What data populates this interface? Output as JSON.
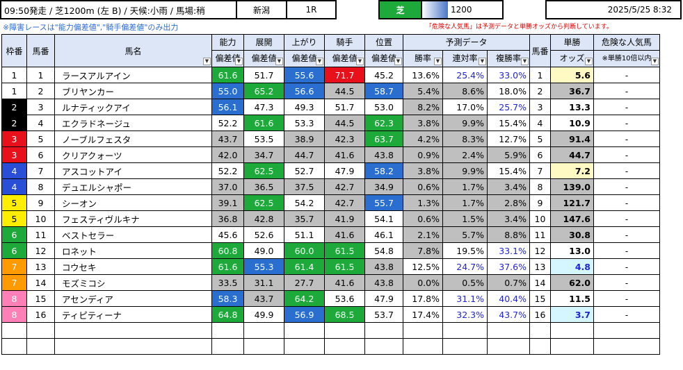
{
  "header": {
    "race_info": "09:50発走 / 芝1200m (左 B) / 天候:小雨 / 馬場:稍",
    "venue": "新潟",
    "race_no": "1R",
    "surface": "芝",
    "distance": "1200",
    "datetime": "2025/5/25 8:32"
  },
  "notes": {
    "left": "※障害レースは\"能力偏差値\",\"騎手偏差値\"のみ出力",
    "right": "「危険な人気馬」は予測データと単勝オッズから判断しています。"
  },
  "columns": {
    "waku": "枠番",
    "umaban": "馬番",
    "name": "馬名",
    "ability": "能力",
    "tenkai": "展開",
    "agari": "上がり",
    "jockey": "騎手",
    "position": "位置",
    "dev": "偏差値",
    "prediction": "予測データ",
    "win": "勝率",
    "place2": "連対率",
    "place3": "複勝率",
    "umaban2": "馬番",
    "tansho": "単勝",
    "odds": "オッズ",
    "danger": "危険な人気馬",
    "danger_sub": "※単勝10倍以内"
  },
  "colors": {
    "waku1": "#ffffff",
    "waku2": "#000000",
    "waku3": "#e8101a",
    "waku4": "#2a4fd6",
    "waku5": "#ffee00",
    "waku6": "#1daa3a",
    "waku7": "#ff9a00",
    "waku8": "#ff7fb6"
  },
  "rows": [
    {
      "waku": "1",
      "umaban": "1",
      "name": "ラースアルアイン",
      "ability": "61.6",
      "tenkai": "51.7",
      "agari": "55.6",
      "jockey": "71.7",
      "position": "45.2",
      "win": "13.6%",
      "place2": "25.4%",
      "place3": "33.0%",
      "umaban2": "1",
      "odds": "5.6",
      "danger": "-"
    },
    {
      "waku": "1",
      "umaban": "2",
      "name": "ブリヤンカー",
      "ability": "55.0",
      "tenkai": "65.2",
      "agari": "56.6",
      "jockey": "44.5",
      "position": "58.7",
      "win": "5.4%",
      "place2": "8.6%",
      "place3": "18.0%",
      "umaban2": "2",
      "odds": "36.7",
      "danger": "-"
    },
    {
      "waku": "2",
      "umaban": "3",
      "name": "ルナティックアイ",
      "ability": "56.1",
      "tenkai": "47.3",
      "agari": "49.3",
      "jockey": "51.7",
      "position": "53.0",
      "win": "8.2%",
      "place2": "17.0%",
      "place3": "25.7%",
      "umaban2": "3",
      "odds": "13.3",
      "danger": "-"
    },
    {
      "waku": "2",
      "umaban": "4",
      "name": "エクラドネージュ",
      "ability": "52.2",
      "tenkai": "61.6",
      "agari": "53.3",
      "jockey": "44.5",
      "position": "62.3",
      "win": "3.8%",
      "place2": "9.9%",
      "place3": "15.4%",
      "umaban2": "4",
      "odds": "10.9",
      "danger": "-"
    },
    {
      "waku": "3",
      "umaban": "5",
      "name": "ノーブルフェスタ",
      "ability": "43.7",
      "tenkai": "53.5",
      "agari": "38.9",
      "jockey": "42.3",
      "position": "63.7",
      "win": "4.2%",
      "place2": "8.3%",
      "place3": "12.7%",
      "umaban2": "5",
      "odds": "91.4",
      "danger": "-"
    },
    {
      "waku": "3",
      "umaban": "6",
      "name": "クリアクォーツ",
      "ability": "42.0",
      "tenkai": "34.7",
      "agari": "44.7",
      "jockey": "41.6",
      "position": "43.8",
      "win": "0.9%",
      "place2": "2.4%",
      "place3": "5.9%",
      "umaban2": "6",
      "odds": "44.7",
      "danger": "-"
    },
    {
      "waku": "4",
      "umaban": "7",
      "name": "アスコットアイ",
      "ability": "52.2",
      "tenkai": "62.5",
      "agari": "52.7",
      "jockey": "47.9",
      "position": "58.2",
      "win": "3.8%",
      "place2": "9.9%",
      "place3": "15.4%",
      "umaban2": "7",
      "odds": "7.2",
      "danger": "-"
    },
    {
      "waku": "4",
      "umaban": "8",
      "name": "デュエルシャポー",
      "ability": "37.0",
      "tenkai": "36.5",
      "agari": "37.5",
      "jockey": "42.7",
      "position": "34.9",
      "win": "0.6%",
      "place2": "1.7%",
      "place3": "3.4%",
      "umaban2": "8",
      "odds": "139.0",
      "danger": "-"
    },
    {
      "waku": "5",
      "umaban": "9",
      "name": "シーオン",
      "ability": "39.1",
      "tenkai": "62.5",
      "agari": "54.2",
      "jockey": "42.7",
      "position": "55.7",
      "win": "1.3%",
      "place2": "1.7%",
      "place3": "2.8%",
      "umaban2": "9",
      "odds": "121.7",
      "danger": "-"
    },
    {
      "waku": "5",
      "umaban": "10",
      "name": "フェスティヴルキナ",
      "ability": "36.8",
      "tenkai": "42.8",
      "agari": "35.7",
      "jockey": "41.9",
      "position": "54.1",
      "win": "0.6%",
      "place2": "1.5%",
      "place3": "3.4%",
      "umaban2": "10",
      "odds": "147.6",
      "danger": "-"
    },
    {
      "waku": "6",
      "umaban": "11",
      "name": "ベストセラー",
      "ability": "45.6",
      "tenkai": "52.6",
      "agari": "51.1",
      "jockey": "41.6",
      "position": "46.1",
      "win": "2.1%",
      "place2": "5.7%",
      "place3": "8.8%",
      "umaban2": "11",
      "odds": "30.8",
      "danger": "-"
    },
    {
      "waku": "6",
      "umaban": "12",
      "name": "ロネット",
      "ability": "60.8",
      "tenkai": "49.0",
      "agari": "60.0",
      "jockey": "61.5",
      "position": "54.8",
      "win": "7.8%",
      "place2": "19.5%",
      "place3": "33.1%",
      "umaban2": "12",
      "odds": "13.0",
      "danger": "-"
    },
    {
      "waku": "7",
      "umaban": "13",
      "name": "コウセキ",
      "ability": "61.6",
      "tenkai": "55.3",
      "agari": "61.4",
      "jockey": "61.5",
      "position": "43.8",
      "win": "12.5%",
      "place2": "24.7%",
      "place3": "37.6%",
      "umaban2": "13",
      "odds": "4.8",
      "danger": "-"
    },
    {
      "waku": "7",
      "umaban": "14",
      "name": "モズミコシ",
      "ability": "33.5",
      "tenkai": "31.1",
      "agari": "27.7",
      "jockey": "41.6",
      "position": "43.8",
      "win": "0.0%",
      "place2": "0.5%",
      "place3": "0.7%",
      "umaban2": "14",
      "odds": "62.0",
      "danger": "-"
    },
    {
      "waku": "8",
      "umaban": "15",
      "name": "アセンディア",
      "ability": "58.3",
      "tenkai": "43.7",
      "agari": "64.2",
      "jockey": "53.6",
      "position": "47.9",
      "win": "17.8%",
      "place2": "31.1%",
      "place3": "40.4%",
      "umaban2": "15",
      "odds": "11.5",
      "danger": "-"
    },
    {
      "waku": "8",
      "umaban": "16",
      "name": "ティピティーナ",
      "ability": "64.8",
      "tenkai": "49.9",
      "agari": "56.9",
      "jockey": "68.5",
      "position": "53.7",
      "win": "17.4%",
      "place2": "32.3%",
      "place3": "43.7%",
      "umaban2": "16",
      "odds": "3.7",
      "danger": "-"
    }
  ]
}
